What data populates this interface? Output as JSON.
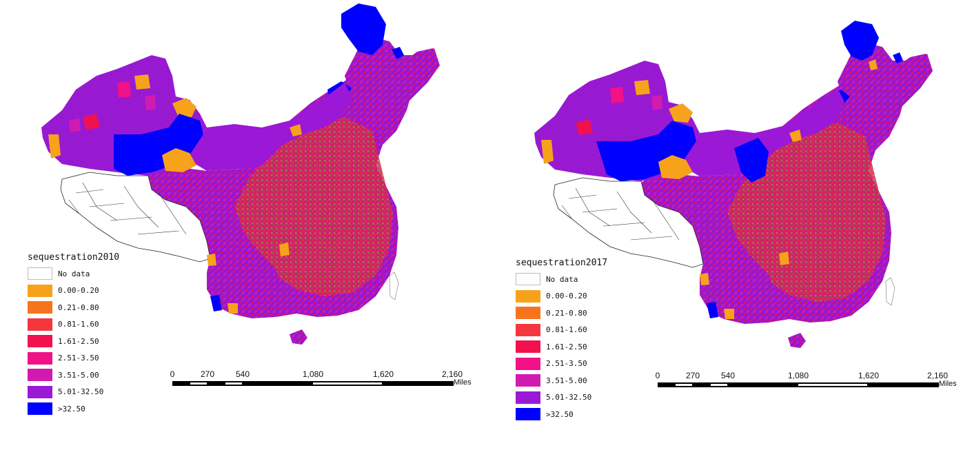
{
  "maps": [
    {
      "legend_title": "sequestration2010",
      "legend": [
        {
          "label": "No data",
          "color": "#ffffff"
        },
        {
          "label": "0.00-0.20",
          "color": "#f7a21b"
        },
        {
          "label": "0.21-0.80",
          "color": "#f7741f"
        },
        {
          "label": "0.81-1.60",
          "color": "#f4363f"
        },
        {
          "label": "1.61-2.50",
          "color": "#f3104f"
        },
        {
          "label": "2.51-3.50",
          "color": "#f01286"
        },
        {
          "label": "3.51-5.00",
          "color": "#d11bb0"
        },
        {
          "label": "5.01-32.50",
          "color": "#9b18d6"
        },
        {
          "label": ">32.50",
          "color": "#0000ff"
        }
      ],
      "scale": {
        "ticks": [
          "0",
          "270",
          "540",
          "1,080",
          "1,620",
          "2,160"
        ],
        "units": "Miles"
      }
    },
    {
      "legend_title": "sequestration2017",
      "legend": [
        {
          "label": "No data",
          "color": "#ffffff"
        },
        {
          "label": "0.00-0.20",
          "color": "#f7a21b"
        },
        {
          "label": "0.21-0.80",
          "color": "#f7741f"
        },
        {
          "label": "0.81-1.60",
          "color": "#f4363f"
        },
        {
          "label": "1.61-2.50",
          "color": "#f3104f"
        },
        {
          "label": "2.51-3.50",
          "color": "#f01286"
        },
        {
          "label": "3.51-5.00",
          "color": "#d11bb0"
        },
        {
          "label": "5.01-32.50",
          "color": "#9b18d6"
        },
        {
          "label": ">32.50",
          "color": "#0000ff"
        }
      ],
      "scale": {
        "ticks": [
          "0",
          "270",
          "540",
          "1,080",
          "1,620",
          "2,160"
        ],
        "units": "Miles"
      }
    }
  ]
}
